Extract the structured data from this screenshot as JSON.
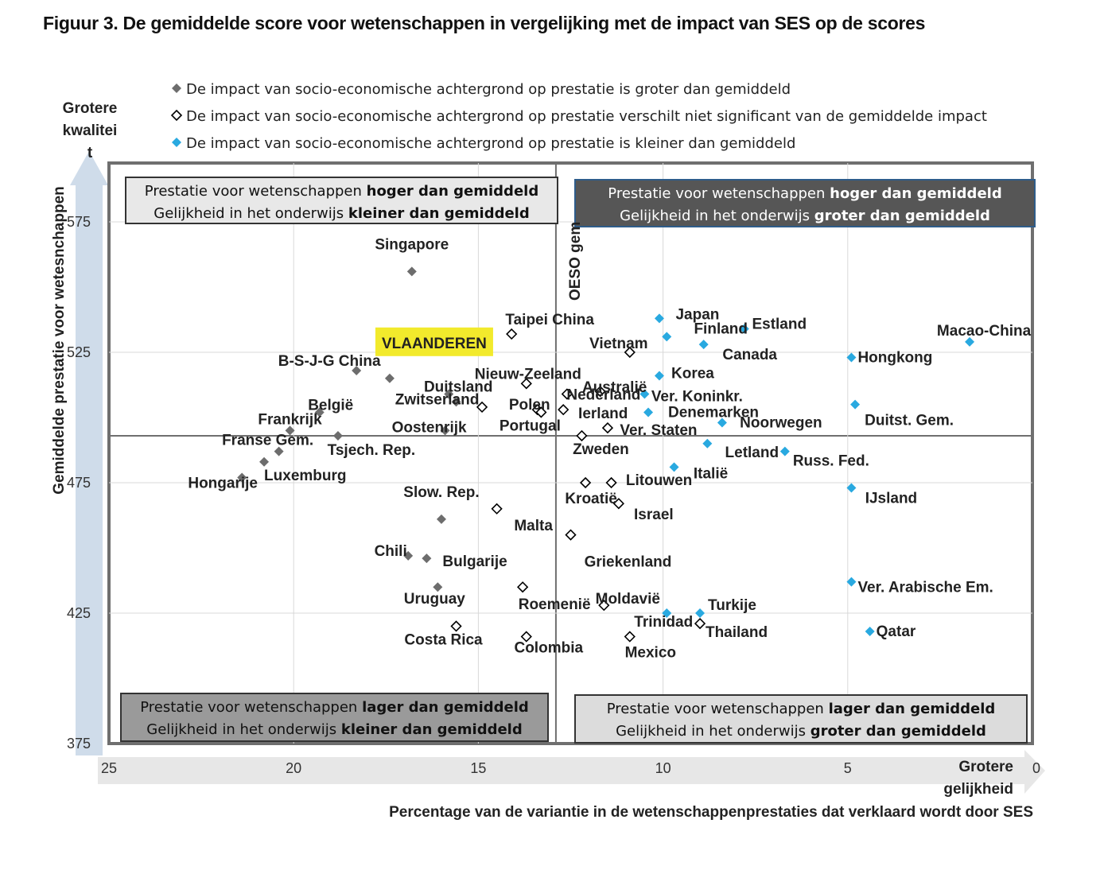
{
  "title": "Figuur 3. De gemiddelde score voor wetenschappen in vergelijking met de impact van SES op de scores",
  "colors": {
    "above": "#6d6d6d",
    "notsig": "#000000",
    "below": "#29a9e0",
    "highlight": "#f2ea2c"
  },
  "chart_data": {
    "type": "scatter",
    "xlabel": "Percentage van de variantie in de wetenschappenprestaties dat verklaard wordt door SES",
    "ylabel": "Gemiddelde prestatie voor wetesnchappen",
    "xlim": [
      25,
      0
    ],
    "ylim": [
      375,
      600
    ],
    "xticks": [
      25,
      20,
      15,
      10,
      5,
      0
    ],
    "yticks": [
      375,
      425,
      475,
      525,
      575
    ],
    "oecd_ref": {
      "x": 12.9,
      "y": 493,
      "label": "OESO gem"
    },
    "x_arrow_label": [
      "Grotere",
      "gelijkheid"
    ],
    "y_arrow_label": [
      "Grotere",
      "kwalitei",
      "t"
    ],
    "legend": [
      {
        "marker": "above",
        "text": "De impact van socio-economische achtergrond op prestatie is groter dan gemiddeld"
      },
      {
        "marker": "notsig",
        "text": "De impact van socio-economische achtergrond op prestatie verschilt niet significant van de gemiddelde impact"
      },
      {
        "marker": "below",
        "text": "De impact van socio-economische achtergrond op prestatie is kleiner dan  gemiddeld"
      }
    ],
    "quadrants": [
      {
        "pos": "top-left",
        "lines": [
          [
            "Prestatie voor wetenschappen ",
            "hoger dan gemiddeld"
          ],
          [
            "Gelijkheid in het onderwijs ",
            "kleiner dan gemiddeld"
          ]
        ]
      },
      {
        "pos": "top-right",
        "lines": [
          [
            "Prestatie voor wetenschappen ",
            "hoger dan gemiddeld"
          ],
          [
            "Gelijkheid in het onderwijs ",
            "groter dan gemiddeld"
          ]
        ]
      },
      {
        "pos": "bottom-left",
        "lines": [
          [
            "Prestatie voor wetenschappen ",
            "lager dan gemiddeld"
          ],
          [
            "Gelijkheid in het onderwijs ",
            "kleiner dan gemiddeld"
          ]
        ]
      },
      {
        "pos": "bottom-right",
        "lines": [
          [
            "Prestatie voor wetenschappen ",
            "lager dan gemiddeld"
          ],
          [
            "Gelijkheid in het onderwijs ",
            "groter dan gemiddeld"
          ]
        ]
      }
    ],
    "points": [
      {
        "name": "Singapore",
        "x": 16.8,
        "y": 556,
        "cat": "above"
      },
      {
        "name": "B-S-J-G China",
        "x": 18.3,
        "y": 518,
        "cat": "above"
      },
      {
        "name": "VLAANDEREN",
        "x": 17.4,
        "y": 515,
        "cat": "above",
        "highlight": true
      },
      {
        "name": "Duitsland",
        "x": 15.8,
        "y": 509,
        "cat": "above"
      },
      {
        "name": "België",
        "x": 19.3,
        "y": 502,
        "cat": "above"
      },
      {
        "name": "Zwitserland",
        "x": 15.6,
        "y": 506,
        "cat": "above"
      },
      {
        "name": "Frankrijk",
        "x": 20.1,
        "y": 495,
        "cat": "above"
      },
      {
        "name": "Oostenrijk",
        "x": 15.9,
        "y": 495,
        "cat": "above"
      },
      {
        "name": "Tsjech. Rep.",
        "x": 18.8,
        "y": 493,
        "cat": "above"
      },
      {
        "name": "Franse Gem.",
        "x": 20.4,
        "y": 487,
        "cat": "above"
      },
      {
        "name": "Luxemburg",
        "x": 20.8,
        "y": 483,
        "cat": "above"
      },
      {
        "name": "Hongarije",
        "x": 21.4,
        "y": 477,
        "cat": "above"
      },
      {
        "name": "Slow. Rep.",
        "x": 16.0,
        "y": 461,
        "cat": "above"
      },
      {
        "name": "Chili",
        "x": 16.9,
        "y": 447,
        "cat": "above"
      },
      {
        "name": "Bulgarije",
        "x": 16.4,
        "y": 446,
        "cat": "above"
      },
      {
        "name": "Uruguay",
        "x": 16.1,
        "y": 435,
        "cat": "above"
      },
      {
        "name": "Taipei China",
        "x": 14.1,
        "y": 532,
        "cat": "notsig"
      },
      {
        "name": "Vietnam",
        "x": 10.9,
        "y": 525,
        "cat": "notsig"
      },
      {
        "name": "Nieuw-Zeeland",
        "x": 13.7,
        "y": 513,
        "cat": "notsig"
      },
      {
        "name": "Australië",
        "x": 11.7,
        "y": 510,
        "cat": "notsig"
      },
      {
        "name": "Nederland",
        "x": 12.6,
        "y": 509,
        "cat": "notsig"
      },
      {
        "name": "Zwitserland-alt",
        "x": 14.9,
        "y": 504,
        "cat": "notsig",
        "nolabel": true
      },
      {
        "name": "Polen",
        "x": 13.4,
        "y": 503,
        "cat": "notsig"
      },
      {
        "name": "Portugal",
        "x": 13.3,
        "y": 502,
        "cat": "notsig",
        "nolabel": true
      },
      {
        "name": "Ierland",
        "x": 12.7,
        "y": 503,
        "cat": "notsig"
      },
      {
        "name": "Ver. Staten",
        "x": 11.5,
        "y": 496,
        "cat": "notsig"
      },
      {
        "name": "Zweden",
        "x": 12.2,
        "y": 493,
        "cat": "notsig"
      },
      {
        "name": "Kroatië",
        "x": 12.1,
        "y": 475,
        "cat": "notsig"
      },
      {
        "name": "Litouwen",
        "x": 11.4,
        "y": 475,
        "cat": "notsig"
      },
      {
        "name": "Israel",
        "x": 11.2,
        "y": 467,
        "cat": "notsig"
      },
      {
        "name": "Malta",
        "x": 14.5,
        "y": 465,
        "cat": "notsig"
      },
      {
        "name": "Griekenland",
        "x": 12.5,
        "y": 455,
        "cat": "notsig"
      },
      {
        "name": "Roemenië",
        "x": 13.8,
        "y": 435,
        "cat": "notsig"
      },
      {
        "name": "Moldavië",
        "x": 11.6,
        "y": 428,
        "cat": "notsig"
      },
      {
        "name": "Costa Rica",
        "x": 15.6,
        "y": 420,
        "cat": "notsig"
      },
      {
        "name": "Colombia",
        "x": 13.7,
        "y": 416,
        "cat": "notsig"
      },
      {
        "name": "Mexico",
        "x": 10.9,
        "y": 416,
        "cat": "notsig"
      },
      {
        "name": "Thailand",
        "x": 9.0,
        "y": 421,
        "cat": "notsig"
      },
      {
        "name": "Japan",
        "x": 10.1,
        "y": 538,
        "cat": "below"
      },
      {
        "name": "Finland",
        "x": 9.9,
        "y": 531,
        "cat": "below"
      },
      {
        "name": "Estland",
        "x": 7.8,
        "y": 534,
        "cat": "below"
      },
      {
        "name": "Canada",
        "x": 8.9,
        "y": 528,
        "cat": "below"
      },
      {
        "name": "Macao-China",
        "x": 1.7,
        "y": 529,
        "cat": "below"
      },
      {
        "name": "Hongkong",
        "x": 4.9,
        "y": 523,
        "cat": "below"
      },
      {
        "name": "Korea",
        "x": 10.1,
        "y": 516,
        "cat": "below"
      },
      {
        "name": "Ver. Koninkr.",
        "x": 10.5,
        "y": 509,
        "cat": "below"
      },
      {
        "name": "Duitst. Gem.",
        "x": 4.8,
        "y": 505,
        "cat": "below"
      },
      {
        "name": "Denemarken",
        "x": 10.4,
        "y": 502,
        "cat": "below"
      },
      {
        "name": "Noorwegen",
        "x": 8.4,
        "y": 498,
        "cat": "below"
      },
      {
        "name": "Letland",
        "x": 8.8,
        "y": 490,
        "cat": "below"
      },
      {
        "name": "Russ. Fed.",
        "x": 6.7,
        "y": 487,
        "cat": "below"
      },
      {
        "name": "Italië",
        "x": 9.7,
        "y": 481,
        "cat": "below"
      },
      {
        "name": "IJsland",
        "x": 4.9,
        "y": 473,
        "cat": "below"
      },
      {
        "name": "Ver. Arabische Em.",
        "x": 4.9,
        "y": 437,
        "cat": "below"
      },
      {
        "name": "Turkije",
        "x": 9.0,
        "y": 425,
        "cat": "below"
      },
      {
        "name": "Trinidad",
        "x": 9.9,
        "y": 425,
        "cat": "below"
      },
      {
        "name": "Qatar",
        "x": 4.4,
        "y": 418,
        "cat": "below"
      }
    ]
  }
}
